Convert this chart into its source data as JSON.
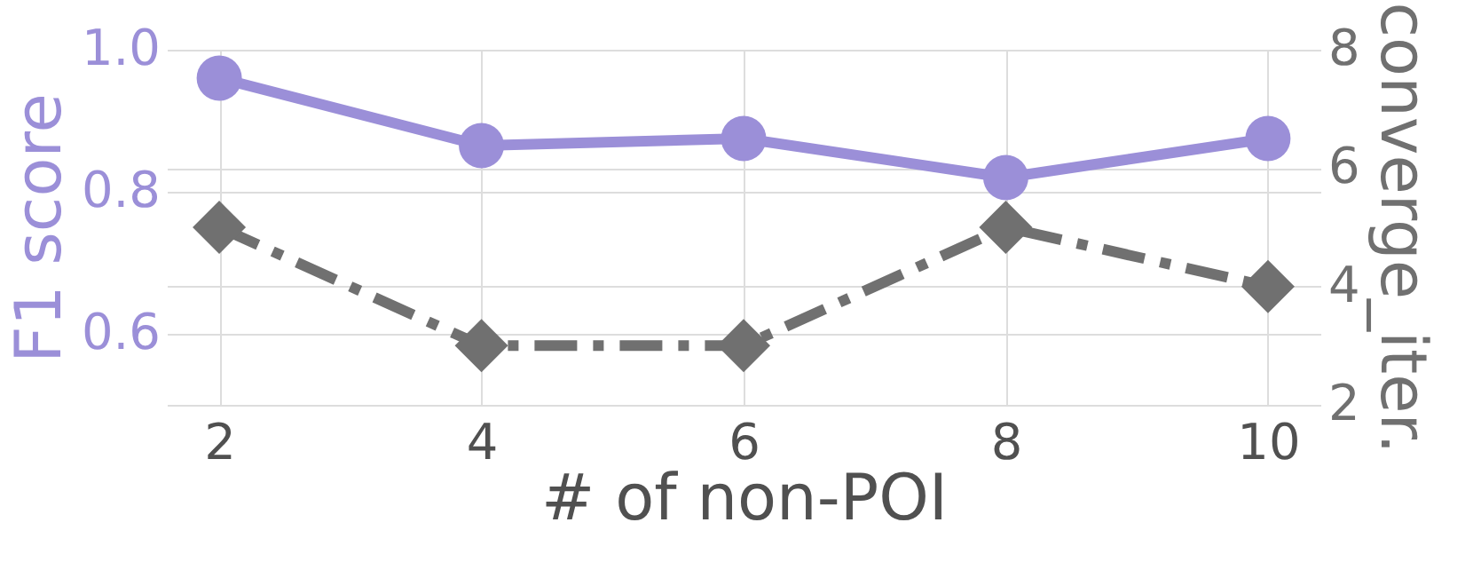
{
  "chart_data": {
    "type": "line",
    "xlabel": "# of non-POI",
    "ylabel": "F1 score",
    "y2label": "converge_iter.",
    "x": [
      2,
      4,
      6,
      8,
      10
    ],
    "series": [
      {
        "color": "#9b8fd8",
        "marker": "circle",
        "line_style": "solid",
        "values": [
          0.96,
          0.865,
          0.875,
          0.82,
          0.875
        ]
      },
      {
        "axis": "y2",
        "color": "#707070",
        "marker": "diamond",
        "line_style": "dashed",
        "values": [
          5,
          3,
          3,
          5,
          4
        ]
      }
    ],
    "xlim": [
      1.6,
      10.4
    ],
    "xticks": [
      2,
      4,
      6,
      8,
      10
    ],
    "ylim": [
      0.5,
      1.0
    ],
    "yticks": [
      0.6,
      0.8,
      {
        "value": 1.0,
        "label": "1.0"
      }
    ],
    "y2lim": [
      2,
      8
    ],
    "y2ticks": [
      2,
      4,
      6,
      8
    ],
    "grid": true
  }
}
